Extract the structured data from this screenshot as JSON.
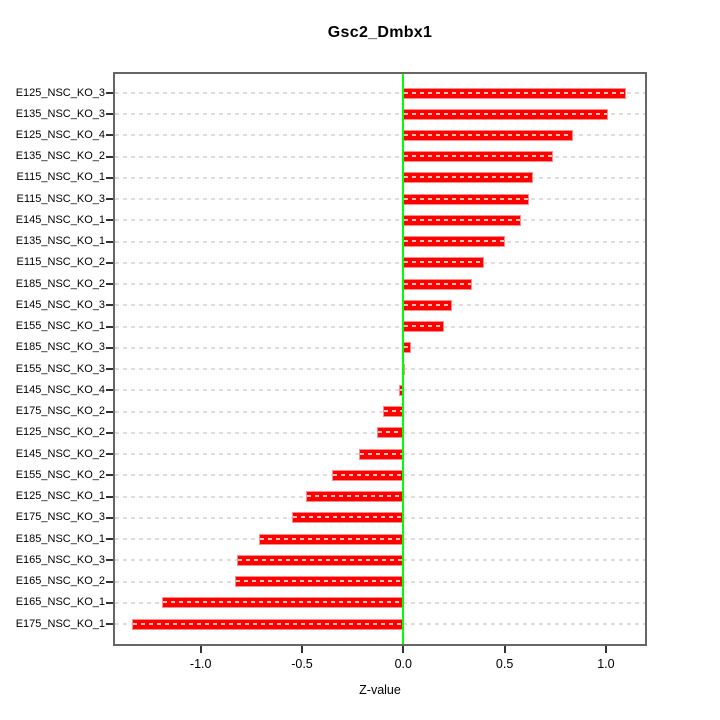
{
  "chart_data": {
    "type": "bar",
    "orientation": "horizontal",
    "title": "Gsc2_Dmbx1",
    "xlabel": "Z-value",
    "grid": true,
    "gridline_style": "dashed",
    "gridline_color": "#dedede",
    "bar_color": "#ff0000",
    "bar_edge_color": "#ff8c8c",
    "zero_line_color": "#00ff00",
    "box_color": "#666666",
    "xlim": [
      -1.43,
      1.21
    ],
    "xticks": [
      -1.0,
      -0.5,
      0.0,
      0.5,
      1.0
    ],
    "xtick_labels": [
      "-1.0",
      "-0.5",
      "0.0",
      "0.5",
      "1.0"
    ],
    "categories": [
      "E125_NSC_KO_3",
      "E135_NSC_KO_3",
      "E125_NSC_KO_4",
      "E135_NSC_KO_2",
      "E115_NSC_KO_1",
      "E115_NSC_KO_3",
      "E145_NSC_KO_1",
      "E135_NSC_KO_1",
      "E115_NSC_KO_2",
      "E185_NSC_KO_2",
      "E145_NSC_KO_3",
      "E155_NSC_KO_1",
      "E185_NSC_KO_3",
      "E155_NSC_KO_3",
      "E145_NSC_KO_4",
      "E175_NSC_KO_2",
      "E125_NSC_KO_2",
      "E145_NSC_KO_2",
      "E155_NSC_KO_2",
      "E125_NSC_KO_1",
      "E175_NSC_KO_3",
      "E185_NSC_KO_1",
      "E165_NSC_KO_3",
      "E165_NSC_KO_2",
      "E165_NSC_KO_1",
      "E175_NSC_KO_1"
    ],
    "values": [
      1.1,
      1.01,
      0.84,
      0.74,
      0.64,
      0.62,
      0.58,
      0.5,
      0.4,
      0.34,
      0.24,
      0.2,
      0.04,
      0.01,
      -0.02,
      -0.1,
      -0.13,
      -0.22,
      -0.35,
      -0.48,
      -0.55,
      -0.71,
      -0.82,
      -0.83,
      -1.19,
      -1.34
    ]
  }
}
